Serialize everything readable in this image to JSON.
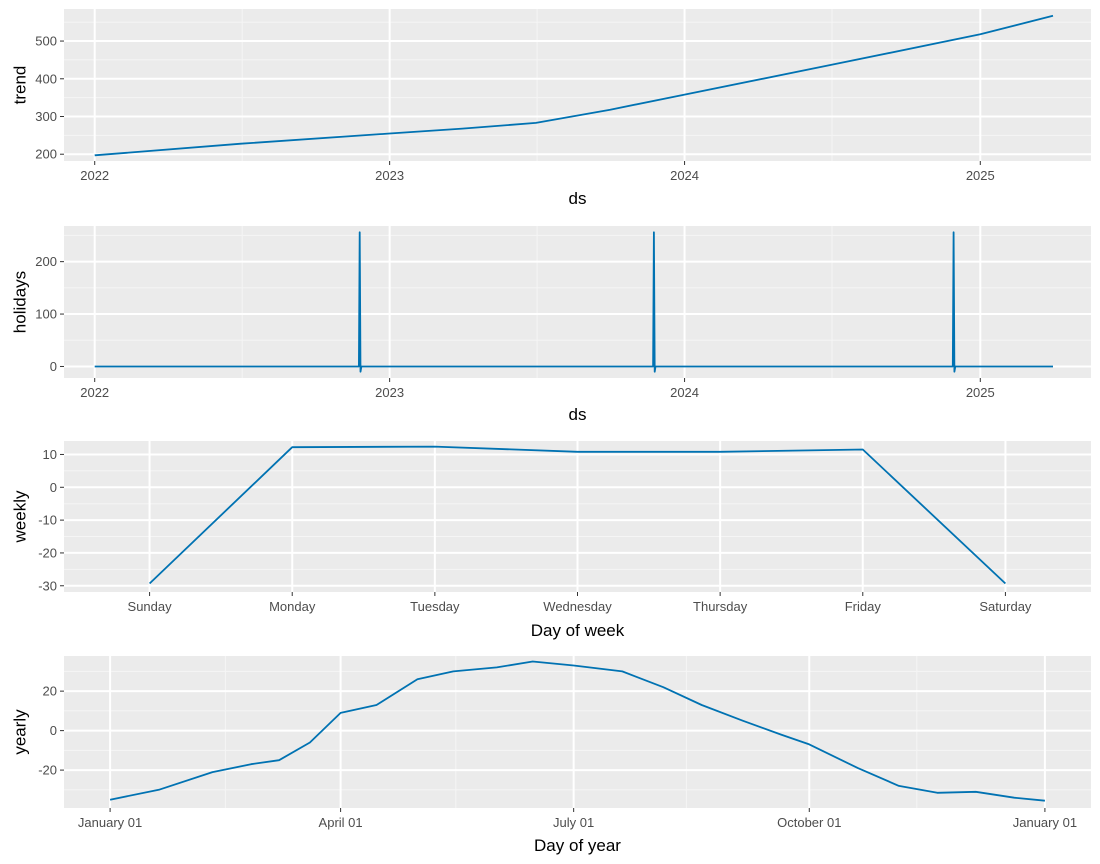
{
  "chart_data": [
    {
      "type": "line",
      "xlabel": "ds",
      "ylabel": "trend",
      "x_tick_labels": [
        "2022",
        "2023",
        "2024",
        "2025"
      ],
      "x_tick_values": [
        "2022-01-01",
        "2023-01-01",
        "2024-01-01",
        "2025-01-01"
      ],
      "xlim": [
        "2021-11-24",
        "2025-05-18"
      ],
      "y_tick_labels": [
        "200",
        "300",
        "400",
        "500"
      ],
      "y_tick_values": [
        200,
        300,
        400,
        500
      ],
      "ylim": [
        182,
        585
      ],
      "grid": true,
      "series": [
        {
          "color": "#0072B2",
          "x": [
            "2022-01-01",
            "2022-07-01",
            "2023-01-01",
            "2023-04-01",
            "2023-07-01",
            "2023-10-01",
            "2024-01-01",
            "2024-07-01",
            "2025-01-01",
            "2025-04-01"
          ],
          "y": [
            197,
            228,
            255,
            268,
            283,
            318,
            358,
            437,
            518,
            567
          ]
        }
      ]
    },
    {
      "type": "line",
      "xlabel": "ds",
      "ylabel": "holidays",
      "x_tick_labels": [
        "2022",
        "2023",
        "2024",
        "2025"
      ],
      "x_tick_values": [
        "2022-01-01",
        "2023-01-01",
        "2024-01-01",
        "2025-01-01"
      ],
      "xlim": [
        "2021-11-24",
        "2025-05-18"
      ],
      "y_tick_labels": [
        "0",
        "100",
        "200"
      ],
      "y_tick_values": [
        0,
        100,
        200
      ],
      "ylim": [
        -22,
        268
      ],
      "grid": true,
      "series": [
        {
          "color": "#0072B2",
          "x": [
            "2022-01-01",
            "2022-11-24",
            "2022-11-25",
            "2022-11-26",
            "2022-11-27",
            "2023-11-23",
            "2023-11-24",
            "2023-11-25",
            "2023-11-26",
            "2024-11-28",
            "2024-11-29",
            "2024-11-30",
            "2024-12-01",
            "2025-04-01"
          ],
          "y": [
            0,
            0,
            256,
            -10,
            0,
            0,
            256,
            -10,
            0,
            0,
            256,
            -10,
            0,
            0
          ]
        }
      ]
    },
    {
      "type": "line",
      "xlabel": "Day of week",
      "ylabel": "weekly",
      "categories": [
        "Sunday",
        "Monday",
        "Tuesday",
        "Wednesday",
        "Thursday",
        "Friday",
        "Saturday"
      ],
      "x_tick_labels": [
        "Sunday",
        "Monday",
        "Tuesday",
        "Wednesday",
        "Thursday",
        "Friday",
        "Saturday"
      ],
      "y_tick_labels": [
        "10",
        "0",
        "-10",
        "-20",
        "-30"
      ],
      "y_tick_values": [
        10,
        0,
        -10,
        -20,
        -30
      ],
      "ylim": [
        -31.9,
        14.1
      ],
      "grid": true,
      "series": [
        {
          "color": "#0072B2",
          "values": [
            -29.3,
            12.2,
            12.4,
            10.8,
            10.8,
            11.5,
            -29.3
          ]
        }
      ]
    },
    {
      "type": "line",
      "xlabel": "Day of year",
      "ylabel": "yearly",
      "x_tick_labels": [
        "January 01",
        "April 01",
        "July 01",
        "October 01",
        "January 01"
      ],
      "x_tick_values": [
        "2017-01-01",
        "2017-04-01",
        "2017-07-01",
        "2017-10-01",
        "2018-01-01"
      ],
      "xlim": [
        "2016-12-14",
        "2018-01-19"
      ],
      "y_tick_labels": [
        "20",
        "0",
        "-20"
      ],
      "y_tick_values": [
        20,
        0,
        -20
      ],
      "ylim": [
        -39.2,
        37.8
      ],
      "grid": true,
      "series": [
        {
          "color": "#0072B2",
          "x": [
            "2017-01-01",
            "2017-01-20",
            "2017-02-10",
            "2017-02-25",
            "2017-03-08",
            "2017-03-20",
            "2017-04-01",
            "2017-04-15",
            "2017-05-01",
            "2017-05-15",
            "2017-06-01",
            "2017-06-15",
            "2017-07-01",
            "2017-07-20",
            "2017-08-05",
            "2017-08-20",
            "2017-09-05",
            "2017-09-20",
            "2017-10-01",
            "2017-10-20",
            "2017-11-05",
            "2017-11-20",
            "2017-12-05",
            "2017-12-20",
            "2018-01-01"
          ],
          "y": [
            -35,
            -30,
            -21,
            -17,
            -15,
            -6,
            9,
            13,
            26,
            30,
            32,
            35,
            33,
            30,
            22,
            13,
            5,
            -2,
            -7,
            -19,
            -28,
            -31.5,
            -31,
            -34,
            -35.5
          ]
        }
      ]
    }
  ]
}
